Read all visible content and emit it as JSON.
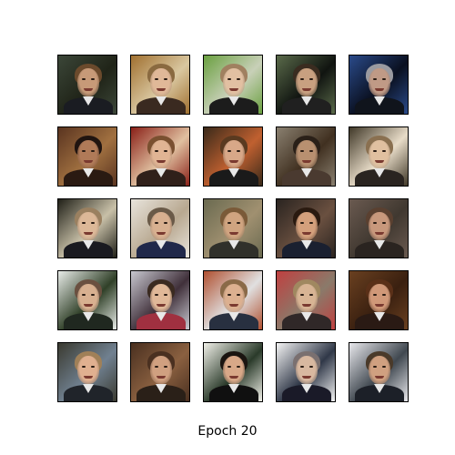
{
  "caption": "Epoch 20",
  "grid": {
    "rows": 5,
    "cols": 5
  },
  "samples": [
    {
      "bg": "#3b4638",
      "bg2": "#202418",
      "hair": "#6b4a2c",
      "skin": "#c79a78",
      "suit": "#1a1c22"
    },
    {
      "bg": "#a07030",
      "bg2": "#d9c7a0",
      "hair": "#8a6a40",
      "skin": "#e0b898",
      "suit": "#3a2a20"
    },
    {
      "bg": "#6aa040",
      "bg2": "#c8d0b8",
      "hair": "#a08060",
      "skin": "#e2c0a2",
      "suit": "#1c1c1c"
    },
    {
      "bg": "#5a6a4a",
      "bg2": "#101410",
      "hair": "#3a2c20",
      "skin": "#c8a080",
      "suit": "#202020"
    },
    {
      "bg": "#2a4a8a",
      "bg2": "#0a1020",
      "hair": "#9a9aa0",
      "skin": "#c09a86",
      "suit": "#10141c"
    },
    {
      "bg": "#5a3420",
      "bg2": "#a07040",
      "hair": "#201410",
      "skin": "#b07a58",
      "suit": "#2a1a12"
    },
    {
      "bg": "#8a2018",
      "bg2": "#e0c0a0",
      "hair": "#7a5030",
      "skin": "#e0b494",
      "suit": "#30201a"
    },
    {
      "bg": "#3a2a1a",
      "bg2": "#c06030",
      "hair": "#5a3a20",
      "skin": "#d8a888",
      "suit": "#1a1a1a"
    },
    {
      "bg": "#8a8070",
      "bg2": "#403020",
      "hair": "#2a2018",
      "skin": "#b89070",
      "suit": "#4a3a30"
    },
    {
      "bg": "#403828",
      "bg2": "#e8dcc8",
      "hair": "#8a7050",
      "skin": "#e0c0a0",
      "suit": "#2a2420"
    },
    {
      "bg": "#202018",
      "bg2": "#c8c0a8",
      "hair": "#9a8060",
      "skin": "#dcb898",
      "suit": "#1a1a20"
    },
    {
      "bg": "#e8e4dc",
      "bg2": "#b8a890",
      "hair": "#6a5a48",
      "skin": "#d8b090",
      "suit": "#20284a"
    },
    {
      "bg": "#6a6a50",
      "bg2": "#a09070",
      "hair": "#7a5a38",
      "skin": "#d0a480",
      "suit": "#30302a"
    },
    {
      "bg": "#2a2420",
      "bg2": "#6a5040",
      "hair": "#2a1a10",
      "skin": "#d4a07c",
      "suit": "#1a2030"
    },
    {
      "bg": "#6a5a50",
      "bg2": "#403830",
      "hair": "#5a4030",
      "skin": "#c8987c",
      "suit": "#2a2420"
    },
    {
      "bg": "#e8ece8",
      "bg2": "#304028",
      "hair": "#6a5040",
      "skin": "#d8b090",
      "suit": "#202820"
    },
    {
      "bg": "#c8c8d0",
      "bg2": "#40303a",
      "hair": "#3a2a20",
      "skin": "#e0b898",
      "suit": "#a03040"
    },
    {
      "bg": "#b05030",
      "bg2": "#e0e0e0",
      "hair": "#8a6a48",
      "skin": "#dcb090",
      "suit": "#283040"
    },
    {
      "bg": "#c04040",
      "bg2": "#8a7a6a",
      "hair": "#a08860",
      "skin": "#d8b494",
      "suit": "#302828"
    },
    {
      "bg": "#6a4020",
      "bg2": "#3a2010",
      "hair": "#5a3018",
      "skin": "#d09878",
      "suit": "#2a1a14"
    },
    {
      "bg": "#3a3a30",
      "bg2": "#708090",
      "hair": "#a08058",
      "skin": "#e0b090",
      "suit": "#20242a"
    },
    {
      "bg": "#4a3020",
      "bg2": "#8a6040",
      "hair": "#4a3020",
      "skin": "#d0a080",
      "suit": "#2a2018"
    },
    {
      "bg": "#f0f0e8",
      "bg2": "#2a3a2a",
      "hair": "#1a1410",
      "skin": "#d8a888",
      "suit": "#101010"
    },
    {
      "bg": "#f4f4f4",
      "bg2": "#303848",
      "hair": "#7a7070",
      "skin": "#d8b8a0",
      "suit": "#1a1a28"
    },
    {
      "bg": "#e8e8ec",
      "bg2": "#404850",
      "hair": "#4a3a2a",
      "skin": "#d0a080",
      "suit": "#1c2028"
    }
  ]
}
